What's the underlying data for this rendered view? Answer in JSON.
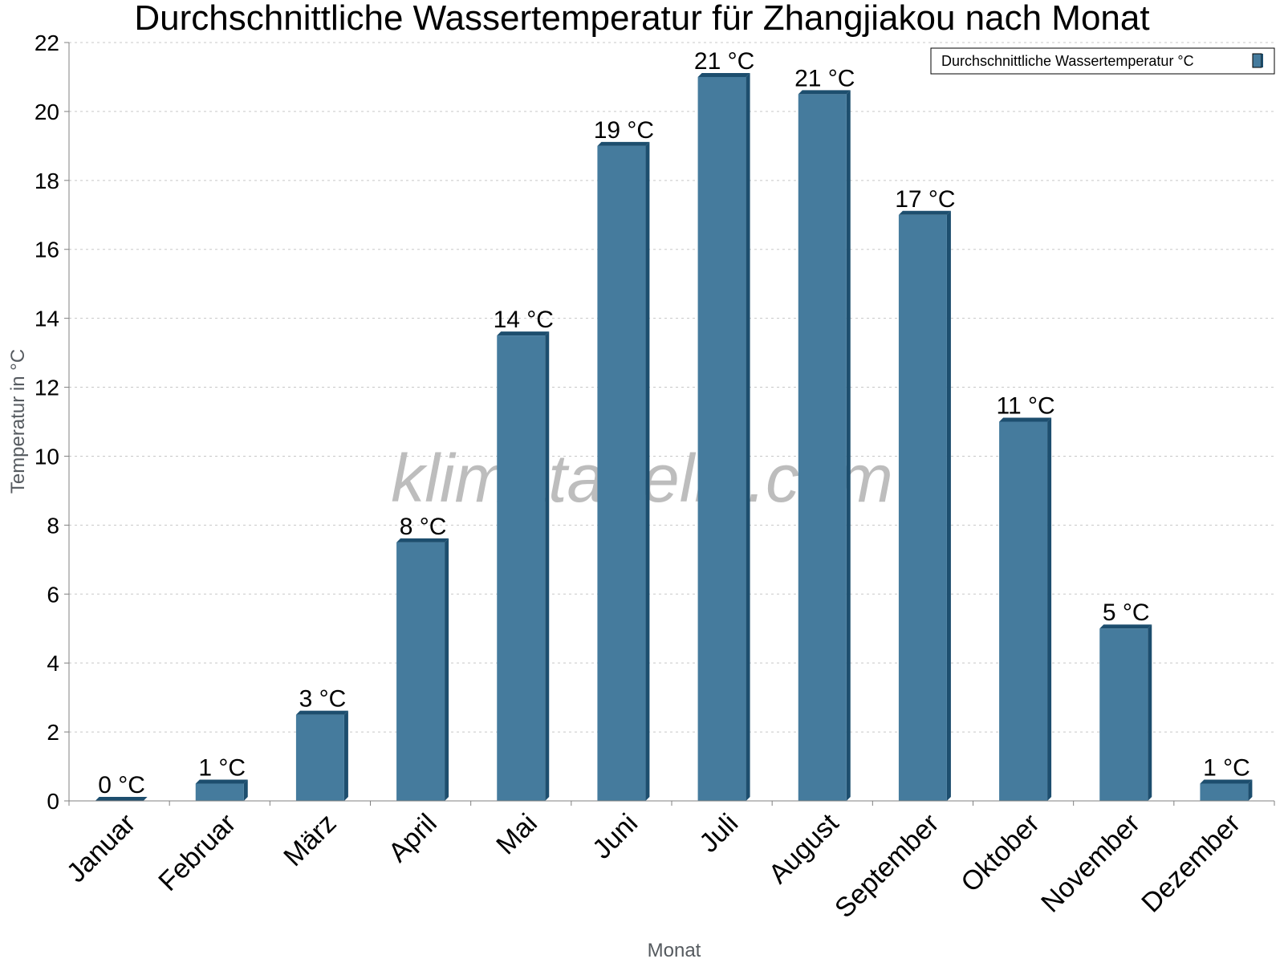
{
  "chart_data": {
    "type": "bar",
    "title": "Durchschnittliche Wassertemperatur für Zhangjiakou nach Monat",
    "xlabel": "Monat",
    "ylabel": "Temperatur in °C",
    "ylim": [
      0,
      22
    ],
    "yticks": [
      "0",
      "2",
      "4",
      "6",
      "8",
      "10",
      "12",
      "14",
      "16",
      "18",
      "20",
      "22"
    ],
    "grid": true,
    "legend_position": "top-right",
    "categories": [
      "Januar",
      "Februar",
      "März",
      "April",
      "Mai",
      "Juni",
      "Juli",
      "August",
      "September",
      "Oktober",
      "November",
      "Dezember"
    ],
    "series": [
      {
        "name": "Durchschnittliche Wassertemperatur °C",
        "values": [
          0,
          0.5,
          2.5,
          7.5,
          13.5,
          19,
          21,
          20.5,
          17,
          11,
          5,
          0.5
        ],
        "labels": [
          "0 °C",
          "1 °C",
          "3 °C",
          "8 °C",
          "14 °C",
          "19 °C",
          "21 °C",
          "21 °C",
          "17 °C",
          "11 °C",
          "5 °C",
          "1 °C"
        ],
        "color": "#457b9d",
        "dark_color": "#1d4e6e"
      }
    ]
  },
  "watermark": "klimatabelle.com"
}
